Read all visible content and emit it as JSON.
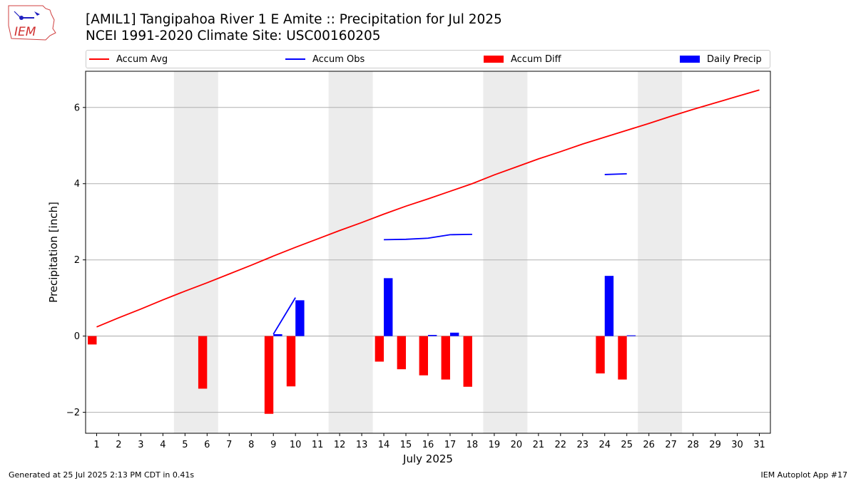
{
  "header": {
    "title_line1": "[AMIL1] Tangipahoa River 1 E Amite :: Precipitation for Jul 2025",
    "title_line2": "NCEI 1991-2020 Climate Site: USC00160205"
  },
  "logo": {
    "text": "IEM"
  },
  "footer": {
    "left": "Generated at 25 Jul 2025 2:13 PM CDT in 0.41s",
    "right": "IEM Autoplot App #17"
  },
  "colors": {
    "accum_avg": "#ff0000",
    "accum_obs": "#0000ff",
    "accum_diff": "#ff0000",
    "daily_precip": "#0000ff",
    "weekend_band": "#ececec",
    "grid": "#b0b0b0"
  },
  "chart_data": {
    "type": "bar",
    "title": "[AMIL1] Tangipahoa River 1 E Amite :: Precipitation for Jul 2025",
    "subtitle": "NCEI 1991-2020 Climate Site: USC00160205",
    "xlabel": "July 2025",
    "ylabel": "Precipitation [inch]",
    "xlim": [
      0.5,
      31.5
    ],
    "ylim": [
      -2.55,
      6.95
    ],
    "yticks": [
      -2,
      0,
      2,
      4,
      6
    ],
    "ytick_labels": [
      "−2",
      "0",
      "2",
      "4",
      "6"
    ],
    "x": [
      1,
      2,
      3,
      4,
      5,
      6,
      7,
      8,
      9,
      10,
      11,
      12,
      13,
      14,
      15,
      16,
      17,
      18,
      19,
      20,
      21,
      22,
      23,
      24,
      25,
      26,
      27,
      28,
      29,
      30,
      31
    ],
    "grid": "horizontal",
    "legend_position": "top",
    "weekend_bands": [
      [
        5,
        6
      ],
      [
        12,
        13
      ],
      [
        19,
        20
      ],
      [
        26,
        27
      ]
    ],
    "series": [
      {
        "name": "Accum Avg",
        "kind": "line",
        "color": "#ff0000",
        "values": [
          0.24,
          0.48,
          0.71,
          0.95,
          1.18,
          1.4,
          1.63,
          1.86,
          2.1,
          2.33,
          2.55,
          2.77,
          2.98,
          3.2,
          3.41,
          3.6,
          3.8,
          4.0,
          4.23,
          4.44,
          4.65,
          4.84,
          5.04,
          5.22,
          5.4,
          5.58,
          5.77,
          5.95,
          6.12,
          6.29,
          6.46
        ]
      },
      {
        "name": "Accum Obs",
        "kind": "line",
        "color": "#0000ff",
        "segments": [
          {
            "x": [
              9,
              10
            ],
            "values": [
              0.05,
              1.01
            ]
          },
          {
            "x": [
              14,
              15,
              16,
              17,
              18
            ],
            "values": [
              2.53,
              2.54,
              2.57,
              2.66,
              2.67
            ]
          },
          {
            "x": [
              24,
              25
            ],
            "values": [
              4.24,
              4.26
            ]
          }
        ]
      },
      {
        "name": "Accum Diff",
        "kind": "bar",
        "color": "#ff0000",
        "offset": -0.2,
        "x": [
          1,
          6,
          9,
          10,
          14,
          15,
          16,
          17,
          18,
          24,
          25
        ],
        "values": [
          -0.22,
          -1.38,
          -2.04,
          -1.32,
          -0.67,
          -0.87,
          -1.03,
          -1.14,
          -1.33,
          -0.98,
          -1.14
        ]
      },
      {
        "name": "Daily Precip",
        "kind": "bar",
        "color": "#0000ff",
        "offset": 0.2,
        "x": [
          9,
          10,
          14,
          16,
          17,
          24,
          25
        ],
        "values": [
          0.05,
          0.94,
          1.52,
          0.03,
          0.09,
          1.58,
          0.02
        ]
      }
    ]
  }
}
